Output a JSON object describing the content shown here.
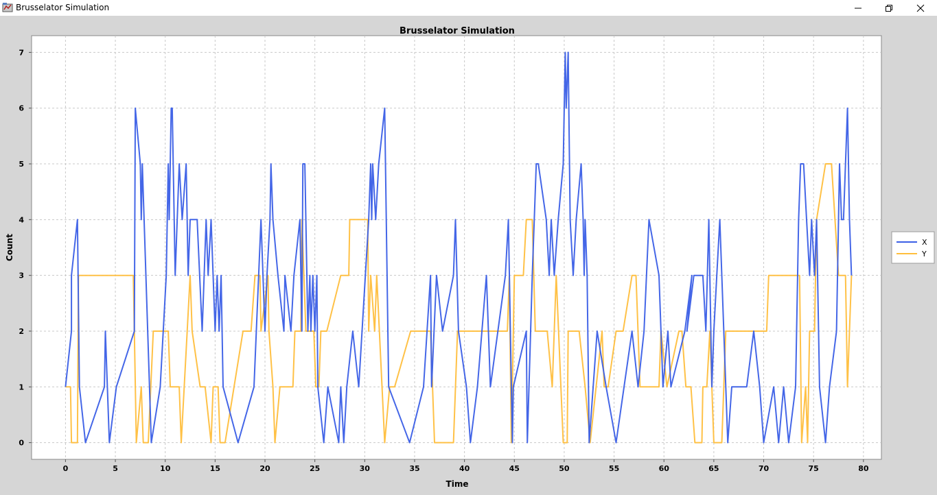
{
  "window": {
    "title": "Brusselator Simulation",
    "icons": {
      "app": "java-app-icon",
      "minimize": "minimize-icon",
      "restore": "restore-icon",
      "close": "close-icon"
    }
  },
  "colors": {
    "x_series": "#3a5ee6",
    "y_series": "#ffbe3c",
    "plot_bg": "#ffffff",
    "window_bg": "#d6d6d6"
  },
  "chart_data": {
    "type": "line",
    "step": false,
    "title": "Brusselator Simulation",
    "xlabel": "Time",
    "ylabel": "Count",
    "xlim": [
      -3.4,
      81.8
    ],
    "ylim": [
      -0.3,
      7.3
    ],
    "xticks": [
      0,
      5,
      10,
      15,
      20,
      25,
      30,
      35,
      40,
      45,
      50,
      55,
      60,
      65,
      70,
      75,
      80
    ],
    "yticks": [
      0,
      1,
      2,
      3,
      4,
      5,
      6,
      7
    ],
    "grid": true,
    "legend_position": "right",
    "series": [
      {
        "name": "X",
        "points": [
          [
            0,
            1
          ],
          [
            0.6,
            2
          ],
          [
            0.6,
            3
          ],
          [
            1.2,
            4
          ],
          [
            1.4,
            1
          ],
          [
            2,
            0
          ],
          [
            3.9,
            1
          ],
          [
            4,
            2
          ],
          [
            4.4,
            0
          ],
          [
            5.1,
            1
          ],
          [
            6.9,
            2
          ],
          [
            7,
            6
          ],
          [
            7.5,
            5
          ],
          [
            7.6,
            4
          ],
          [
            7.7,
            5
          ],
          [
            8.6,
            0
          ],
          [
            9.5,
            1
          ],
          [
            10.1,
            3
          ],
          [
            10.3,
            5
          ],
          [
            10.4,
            4
          ],
          [
            10.5,
            5
          ],
          [
            10.6,
            6
          ],
          [
            10.7,
            6
          ],
          [
            11,
            3
          ],
          [
            11.4,
            5
          ],
          [
            11.7,
            4
          ],
          [
            12.1,
            5
          ],
          [
            12.3,
            3
          ],
          [
            12.5,
            4
          ],
          [
            13.2,
            4
          ],
          [
            13.7,
            2
          ],
          [
            14.1,
            4
          ],
          [
            14.3,
            3
          ],
          [
            14.6,
            4
          ],
          [
            15,
            2
          ],
          [
            15.2,
            3
          ],
          [
            15.4,
            2
          ],
          [
            15.6,
            3
          ],
          [
            15.8,
            1
          ],
          [
            17.3,
            0
          ],
          [
            18.9,
            1
          ],
          [
            19.6,
            4
          ],
          [
            20,
            2
          ],
          [
            20.2,
            3
          ],
          [
            20.5,
            4
          ],
          [
            20.6,
            5
          ],
          [
            20.8,
            4
          ],
          [
            21.3,
            3
          ],
          [
            21.9,
            2
          ],
          [
            22,
            3
          ],
          [
            22.6,
            2
          ],
          [
            22.9,
            3
          ],
          [
            23.5,
            4
          ],
          [
            23.7,
            2
          ],
          [
            23.8,
            5
          ],
          [
            24,
            5
          ],
          [
            24.3,
            2
          ],
          [
            24.5,
            3
          ],
          [
            24.6,
            2
          ],
          [
            24.8,
            3
          ],
          [
            25,
            2
          ],
          [
            25.2,
            3
          ],
          [
            25.3,
            1
          ],
          [
            25.9,
            0
          ],
          [
            26.3,
            1
          ],
          [
            27.4,
            0
          ],
          [
            27.6,
            1
          ],
          [
            27.9,
            0
          ],
          [
            28.2,
            1
          ],
          [
            28.8,
            2
          ],
          [
            29.4,
            1
          ],
          [
            30.4,
            4
          ],
          [
            30.6,
            5
          ],
          [
            30.7,
            4
          ],
          [
            30.8,
            5
          ],
          [
            31.1,
            4
          ],
          [
            31.4,
            5
          ],
          [
            32,
            6
          ],
          [
            32.4,
            1
          ],
          [
            34.5,
            0
          ],
          [
            35.9,
            1
          ],
          [
            36.6,
            3
          ],
          [
            36.7,
            1
          ],
          [
            37.2,
            3
          ],
          [
            37.8,
            2
          ],
          [
            38.9,
            3
          ],
          [
            39.1,
            4
          ],
          [
            39.4,
            2
          ],
          [
            40.2,
            1
          ],
          [
            40.6,
            0
          ],
          [
            41.3,
            1
          ],
          [
            42.2,
            3
          ],
          [
            42.4,
            2
          ],
          [
            42.6,
            1
          ],
          [
            44.1,
            3
          ],
          [
            44.4,
            4
          ],
          [
            44.6,
            2
          ],
          [
            44.8,
            0
          ],
          [
            44.9,
            1
          ],
          [
            46.2,
            2
          ],
          [
            46.3,
            0
          ],
          [
            46.8,
            3
          ],
          [
            47.2,
            5
          ],
          [
            47.4,
            5
          ],
          [
            48.2,
            4
          ],
          [
            48.5,
            3
          ],
          [
            48.7,
            4
          ],
          [
            49,
            3
          ],
          [
            49.4,
            4
          ],
          [
            49.9,
            5
          ],
          [
            50.1,
            7
          ],
          [
            50.2,
            6
          ],
          [
            50.4,
            7
          ],
          [
            50.6,
            4
          ],
          [
            50.9,
            3
          ],
          [
            51.2,
            4
          ],
          [
            51.7,
            5
          ],
          [
            51.9,
            4
          ],
          [
            52,
            3
          ],
          [
            52.1,
            4
          ],
          [
            52.3,
            3
          ],
          [
            52.5,
            0
          ],
          [
            53.3,
            2
          ],
          [
            54.2,
            1
          ],
          [
            55.2,
            0
          ],
          [
            56.8,
            2
          ],
          [
            57.4,
            1
          ],
          [
            58,
            2
          ],
          [
            58.5,
            4
          ],
          [
            59.5,
            3
          ],
          [
            59.9,
            1
          ],
          [
            60.4,
            2
          ],
          [
            60.7,
            1
          ],
          [
            62.1,
            2
          ],
          [
            62.8,
            3
          ],
          [
            62.3,
            2
          ],
          [
            63,
            3
          ],
          [
            63.9,
            3
          ],
          [
            64.2,
            2
          ],
          [
            64.5,
            4
          ],
          [
            64.8,
            1
          ],
          [
            65,
            2
          ],
          [
            65.3,
            3
          ],
          [
            65.6,
            4
          ],
          [
            66,
            2
          ],
          [
            66.4,
            0
          ],
          [
            66.8,
            1
          ],
          [
            67.5,
            1
          ],
          [
            68.3,
            1
          ],
          [
            69,
            2
          ],
          [
            69.6,
            1
          ],
          [
            70,
            0
          ],
          [
            71,
            1
          ],
          [
            71.5,
            0
          ],
          [
            72,
            1
          ],
          [
            72.5,
            0
          ],
          [
            73.2,
            1
          ],
          [
            73.5,
            4
          ],
          [
            73.7,
            5
          ],
          [
            74,
            5
          ],
          [
            74.3,
            4
          ],
          [
            74.6,
            3
          ],
          [
            74.8,
            4
          ],
          [
            75.1,
            3
          ],
          [
            75.3,
            4
          ],
          [
            75.6,
            1
          ],
          [
            76.2,
            0
          ],
          [
            76.6,
            1
          ],
          [
            77.3,
            2
          ],
          [
            77.6,
            5
          ],
          [
            77.8,
            4
          ],
          [
            78,
            4
          ],
          [
            78.2,
            5
          ],
          [
            78.4,
            6
          ],
          [
            78.6,
            4
          ],
          [
            78.8,
            3
          ]
        ]
      },
      {
        "name": "Y",
        "points": [
          [
            0,
            1
          ],
          [
            0.5,
            1
          ],
          [
            0.6,
            0
          ],
          [
            1.2,
            0
          ],
          [
            1.3,
            3
          ],
          [
            6.8,
            3
          ],
          [
            6.9,
            2
          ],
          [
            7.1,
            0
          ],
          [
            7.6,
            1
          ],
          [
            7.8,
            0
          ],
          [
            8.3,
            0
          ],
          [
            8.8,
            2
          ],
          [
            10.3,
            2
          ],
          [
            10.5,
            1
          ],
          [
            11.4,
            1
          ],
          [
            11.6,
            0
          ],
          [
            12.2,
            2
          ],
          [
            12.5,
            3
          ],
          [
            12.7,
            2
          ],
          [
            13.5,
            1
          ],
          [
            14,
            1
          ],
          [
            14.6,
            0
          ],
          [
            14.8,
            1
          ],
          [
            15.3,
            1
          ],
          [
            15.5,
            0
          ],
          [
            16,
            0
          ],
          [
            17.8,
            2
          ],
          [
            18.6,
            2
          ],
          [
            19,
            3
          ],
          [
            19.5,
            3
          ],
          [
            19.6,
            2
          ],
          [
            20.3,
            3
          ],
          [
            20.4,
            2
          ],
          [
            20.8,
            1
          ],
          [
            21,
            0
          ],
          [
            21.5,
            1
          ],
          [
            22.8,
            1
          ],
          [
            23,
            2
          ],
          [
            23.6,
            2
          ],
          [
            23.7,
            4
          ],
          [
            24.1,
            2
          ],
          [
            24.9,
            2
          ],
          [
            25.1,
            1
          ],
          [
            25.4,
            1
          ],
          [
            25.6,
            2
          ],
          [
            26.2,
            2
          ],
          [
            27.6,
            3
          ],
          [
            28.4,
            3
          ],
          [
            28.5,
            4
          ],
          [
            30.3,
            4
          ],
          [
            30.4,
            2
          ],
          [
            30.6,
            3
          ],
          [
            31,
            2
          ],
          [
            31.2,
            3
          ],
          [
            32,
            0
          ],
          [
            32.5,
            1
          ],
          [
            33,
            1
          ],
          [
            34.6,
            2
          ],
          [
            36.6,
            2
          ],
          [
            37,
            0
          ],
          [
            38.9,
            0
          ],
          [
            39.3,
            2
          ],
          [
            44.3,
            2
          ],
          [
            44.5,
            3
          ],
          [
            44.7,
            0
          ],
          [
            45,
            3
          ],
          [
            45.9,
            3
          ],
          [
            46.2,
            4
          ],
          [
            46.8,
            4
          ],
          [
            47.1,
            2
          ],
          [
            48.3,
            2
          ],
          [
            48.8,
            1
          ],
          [
            49.2,
            3
          ],
          [
            49.9,
            0
          ],
          [
            50.3,
            0
          ],
          [
            50.4,
            2
          ],
          [
            51.5,
            2
          ],
          [
            52.1,
            1
          ],
          [
            52.6,
            0
          ],
          [
            53.8,
            2
          ],
          [
            54,
            1
          ],
          [
            54.4,
            1
          ],
          [
            55.2,
            2
          ],
          [
            55.9,
            2
          ],
          [
            56.8,
            3
          ],
          [
            57.2,
            3
          ],
          [
            57.6,
            1
          ],
          [
            58.3,
            1
          ],
          [
            59.5,
            1
          ],
          [
            59.7,
            2
          ],
          [
            60.3,
            1
          ],
          [
            61.5,
            2
          ],
          [
            61.8,
            2
          ],
          [
            62.2,
            1
          ],
          [
            62.7,
            1
          ],
          [
            63.1,
            0
          ],
          [
            63.8,
            0
          ],
          [
            63.9,
            1
          ],
          [
            64.3,
            1
          ],
          [
            64.6,
            2
          ],
          [
            65,
            0
          ],
          [
            65.8,
            0
          ],
          [
            66.2,
            2
          ],
          [
            70.3,
            2
          ],
          [
            70.5,
            3
          ],
          [
            73.6,
            3
          ],
          [
            73.8,
            0
          ],
          [
            74.2,
            1
          ],
          [
            74.4,
            0
          ],
          [
            74.6,
            2
          ],
          [
            75.1,
            2
          ],
          [
            75.3,
            4
          ],
          [
            76.2,
            5
          ],
          [
            76.8,
            5
          ],
          [
            77.5,
            3
          ],
          [
            78.2,
            3
          ],
          [
            78.4,
            1
          ],
          [
            78.6,
            2
          ],
          [
            78.8,
            3
          ]
        ]
      }
    ]
  }
}
